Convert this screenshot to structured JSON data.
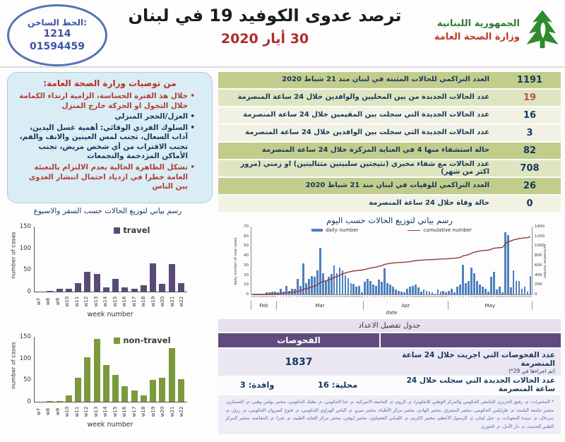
{
  "header": {
    "hotline": {
      "label": "الخط الساخن:",
      "number1": "1214",
      "number2": "01594459"
    },
    "title": "ترصد عدوى الكوفيد 19 في لبنان",
    "date": "30 أيار 2020",
    "ministry": {
      "line1": "الجمهورية اللبنانية",
      "line2": "وزارة الصحة العامة"
    }
  },
  "recommendations": {
    "title": "من توصيات وزارة الصحة العامة:",
    "items": [
      {
        "text": "خلال هذ الفترة الحساسة، الزامية ارتداء الكمامة خلال التجول او الحركة خارج المنزل",
        "color": "red"
      },
      {
        "text": "العزل/الحجر المنزلي",
        "color": "navy"
      },
      {
        "text": "السلوك الفردي الوقائي: أهمية غسل اليدين، آداب السعال، تجنب لمس العينين والانف والفم، تجنب الاقتراب من أي شخص مريض، تجنب الأماكن المزدحمة والتجمعات",
        "color": "navy"
      },
      {
        "text": "تشكل الظاهرة الحالية بعدم الالتزام بالتعبئة العامة خطرا في ازدياد احتمال انتشار العدوى بين الناس",
        "color": "red"
      }
    ]
  },
  "stats_table": {
    "rows": [
      {
        "label": "العدد التراكمي للحالات المثبتة في لبنان منذ 21 شباط 2020",
        "value": "1191",
        "shade": "dark",
        "value_color": "navy"
      },
      {
        "label": "عدد الحالات الجديدة من بين المحليين والوافدين خلال 24 ساعة المنصرمة",
        "value": "19",
        "shade": "medium",
        "value_color": "red"
      },
      {
        "label": "عدد الحالات الجديدة التي سجلت بين المقيمين خلال 24 ساعة المنصرمة",
        "value": "16",
        "shade": "light",
        "value_color": "navy"
      },
      {
        "label": "عدد الحالات الجديدة التي سجلت بين الوافدين خلال 24 ساعة المنصرمة",
        "value": "3",
        "shade": "light",
        "value_color": "navy"
      },
      {
        "label": "حالة استشفاء منها 4 في العناية المركزة خلال 24 ساعة المنصرمة",
        "value": "82",
        "shade": "dark",
        "value_color": "navy"
      },
      {
        "label": "عدد الحالات مع شفاء مخبري (نتيجتين سلبيتين متتاليتين) او زمني (مرور اكثر من شهر)",
        "value": "708",
        "shade": "medium",
        "value_color": "navy"
      },
      {
        "label": "العدد التراكمي للوفيات في لبنان منذ 21 شباط 2020",
        "value": "26",
        "shade": "dark",
        "value_color": "navy"
      },
      {
        "label": "حالة وفاة خلال 24 ساعة المنصرمة",
        "value": "0",
        "shade": "light",
        "value_color": "navy"
      }
    ]
  },
  "chart_data": [
    {
      "id": "travel",
      "type": "bar",
      "title": "رسم بياني لتوزيع الحالات حسب السفر والاسبوع",
      "legend": "travel",
      "color": "#5b4a78",
      "categories": [
        "w7",
        "w8",
        "w9",
        "w10",
        "w11",
        "w12",
        "w13",
        "w14",
        "w15",
        "w16",
        "w17",
        "w18",
        "w19",
        "w20",
        "w21",
        "w22"
      ],
      "values": [
        0,
        1,
        7,
        6,
        20,
        46,
        40,
        10,
        30,
        9,
        6,
        15,
        65,
        18,
        63,
        19
      ],
      "xlabel": "week number",
      "ylabel": "number of cases",
      "ylim": [
        0,
        150
      ],
      "yticks": [
        0,
        50,
        100,
        150
      ]
    },
    {
      "id": "non_travel",
      "type": "bar",
      "title": "",
      "legend": "non-travel",
      "color": "#7a9a3d",
      "categories": [
        "w7",
        "w8",
        "w9",
        "w10",
        "w11",
        "w12",
        "w13",
        "w14",
        "w15",
        "w16",
        "w17",
        "w18",
        "w19",
        "w20",
        "w21",
        "w22"
      ],
      "values": [
        0,
        1,
        2,
        15,
        55,
        103,
        145,
        85,
        62,
        36,
        26,
        14,
        51,
        55,
        124,
        53
      ],
      "xlabel": "week number",
      "ylabel": "number of cases",
      "ylim": [
        0,
        150
      ],
      "yticks": [
        0,
        50,
        100,
        150
      ]
    },
    {
      "id": "daily",
      "type": "bar+line",
      "title": "رسم بياني لتوزيع الحالات حسب اليوم",
      "series": [
        {
          "name": "daily number",
          "type": "bar",
          "color": "#4f81bd"
        },
        {
          "name": "cumulative number",
          "type": "line",
          "color": "#943634"
        }
      ],
      "months": [
        {
          "label": "Feb",
          "start_day": 21,
          "days": 9
        },
        {
          "label": "Mar",
          "start_day": 1,
          "days": 31
        },
        {
          "label": "Apr",
          "start_day": 1,
          "days": 30
        },
        {
          "label": "May",
          "start_day": 1,
          "days": 30
        }
      ],
      "daily_values": [
        1,
        0,
        1,
        1,
        0,
        2,
        2,
        3,
        3,
        2,
        6,
        3,
        9,
        4,
        6,
        6,
        16,
        9,
        32,
        12,
        16,
        19,
        18,
        25,
        48,
        22,
        14,
        18,
        21,
        30,
        22,
        28,
        25,
        20,
        17,
        12,
        11,
        8,
        9,
        2,
        13,
        16,
        14,
        10,
        9,
        15,
        13,
        27,
        12,
        10,
        8,
        5,
        4,
        3,
        2,
        6,
        8,
        9,
        10,
        7,
        3,
        5,
        4,
        3,
        2,
        1,
        5,
        3,
        4,
        2,
        4,
        6,
        2,
        8,
        10,
        31,
        12,
        14,
        28,
        22,
        14,
        10,
        8,
        6,
        3,
        18,
        23,
        5,
        8,
        2,
        64,
        61,
        7,
        25,
        14,
        14,
        6,
        8,
        3,
        19
      ],
      "cumulative_total": 1191,
      "xlabel": "date",
      "left_ylabel": "daily number of new cases",
      "right_ylabel": "cumulative number",
      "left_ylim": [
        0,
        70
      ],
      "right_ylim": [
        0,
        1400
      ],
      "left_yticks": [
        0,
        10,
        20,
        30,
        40,
        50,
        60,
        70
      ],
      "right_yticks": [
        0,
        200,
        400,
        600,
        800,
        1000,
        1200,
        1400
      ]
    }
  ],
  "tests_table": {
    "caption": "جدول تفصيل الاعداد",
    "header": "الفحوصات",
    "row1": {
      "value": "1837",
      "label": "عدد الفحوصات التي اجريت خلال 24 ساعة المنصرمة",
      "note": "(تم اجراءها في 29*)"
    },
    "row2": {
      "local": "محلية: 16",
      "arrivals": "وافدة: 3",
      "label": "عدد الحالات الجديدة التي سجلت خلال 24 ساعة المنصرمة"
    }
  },
  "footnote": "* المختبرات: م. رفيق الحريري الجامعي الحكومي والمركز الوطني للانفلونزا، م. الروم، م. الجامعة الاميركية، م. حنا الحكومي، م. بعلبك الحكومي، مختبر بولس وهبي، م. العسكري، مختبر جامعة البلمند، م. طرابلس الحكومي، مختبر المشرق، مختبر الهادي، مختبر مركز الأطباء، مختبر ميرو، م. الياس الهراوي الحكومي، م. فتوح كسروان الحكومي، م. رزق، م. سرحال، م. سيدة المعونات، م. جبل لبنان، م. الرسول الأعظم، مختبر الكريم، م. اللبناني الجعيتاوي، مختبر ايوفي، مختبر مركز العناية الطبية، م. عبرا، م. المقاصد، مختبر المركز الطبي الحديث، م. دار الأمل، م. الخوري"
}
